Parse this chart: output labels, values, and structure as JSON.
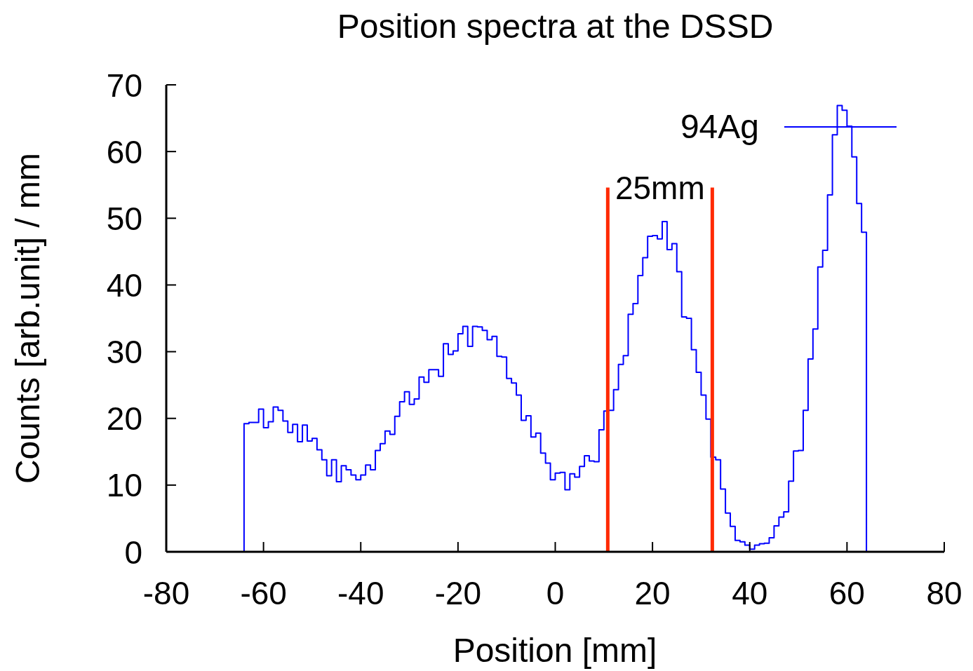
{
  "chart_data": {
    "type": "histogram",
    "title": "Position spectra at the DSSD",
    "xlabel": "Position [mm]",
    "ylabel": "Counts [arb.unit] / mm",
    "bins": [
      -64,
      -63,
      -62,
      -61,
      -60,
      -59,
      -58,
      -57,
      -56,
      -55,
      -54,
      -53,
      -52,
      -51,
      -50,
      -49,
      -48,
      -47,
      -46,
      -45,
      -44,
      -43,
      -42,
      -41,
      -40,
      -39,
      -38,
      -37,
      -36,
      -35,
      -34,
      -33,
      -32,
      -31,
      -30,
      -29,
      -28,
      -27,
      -26,
      -25,
      -24,
      -23,
      -22,
      -21,
      -20,
      -19,
      -18,
      -17,
      -16,
      -15,
      -14,
      -13,
      -12,
      -11,
      -10,
      -9,
      -8,
      -7,
      -6,
      -5,
      -4,
      -3,
      -2,
      -1,
      0,
      1,
      2,
      3,
      4,
      5,
      6,
      7,
      8,
      9,
      10,
      11,
      12,
      13,
      14,
      15,
      16,
      17,
      18,
      19,
      20,
      21,
      22,
      23,
      24,
      25,
      26,
      27,
      28,
      29,
      30,
      31,
      32,
      33,
      34,
      35,
      36,
      37,
      38,
      39,
      40,
      41,
      42,
      43,
      44,
      45,
      46,
      47,
      48,
      49,
      50,
      51,
      52,
      53,
      54,
      55,
      56,
      57,
      58,
      59,
      60,
      61,
      62,
      63,
      64
    ],
    "series": [
      {
        "name": "94Ag",
        "color": "#0000ff",
        "values": [
          19.2,
          19.4,
          19.4,
          21.4,
          18.6,
          19.5,
          21.7,
          21.2,
          19.6,
          17.9,
          19.1,
          16.5,
          19.0,
          16.6,
          17.0,
          15.3,
          13.8,
          11.4,
          13.8,
          10.5,
          12.9,
          12.3,
          11.5,
          10.8,
          11.5,
          13.0,
          12.3,
          15.2,
          16.2,
          18.1,
          17.6,
          20.3,
          22.5,
          24.0,
          22.1,
          22.9,
          26.2,
          25.4,
          27.3,
          27.3,
          26.3,
          31.2,
          29.6,
          30.1,
          32.7,
          33.8,
          30.8,
          33.8,
          33.7,
          33.2,
          31.8,
          32.3,
          29.3,
          29.2,
          26.0,
          25.3,
          23.5,
          19.7,
          20.4,
          17.2,
          17.8,
          14.8,
          13.3,
          10.8,
          11.8,
          11.9,
          9.3,
          11.7,
          11.2,
          12.8,
          14.4,
          13.6,
          13.5,
          18.3,
          21.1,
          21.2,
          24.3,
          28.1,
          29.4,
          35.6,
          37.2,
          41.4,
          44.1,
          47.3,
          47.4,
          46.9,
          49.5,
          45.3,
          46.2,
          42.0,
          35.2,
          35.0,
          30.3,
          26.9,
          23.5,
          19.9,
          14.2,
          13.8,
          9.4,
          5.8,
          3.8,
          1.7,
          1.5,
          1.0,
          0.4,
          1.0,
          1.2,
          1.3,
          2.1,
          3.9,
          5.2,
          6.0,
          10.6,
          15.1,
          15.2,
          21.2,
          28.9,
          33.4,
          42.7,
          45.2,
          53.5,
          62.5,
          66.9,
          66.2,
          63.8,
          59.2,
          52.2,
          47.9
        ]
      }
    ],
    "xlim": [
      -80,
      80
    ],
    "xticks": [
      -80,
      -60,
      -40,
      -20,
      0,
      20,
      40,
      60,
      80
    ],
    "ylim": [
      0,
      70
    ],
    "yticks": [
      0,
      10,
      20,
      30,
      40,
      50,
      60,
      70
    ],
    "ref_lines": [
      {
        "axis": "x",
        "value": 10.8,
        "color": "#ff2a00"
      },
      {
        "axis": "x",
        "value": 32.3,
        "color": "#ff2a00"
      }
    ],
    "annotations": [
      "25mm"
    ],
    "legend": "top right"
  }
}
